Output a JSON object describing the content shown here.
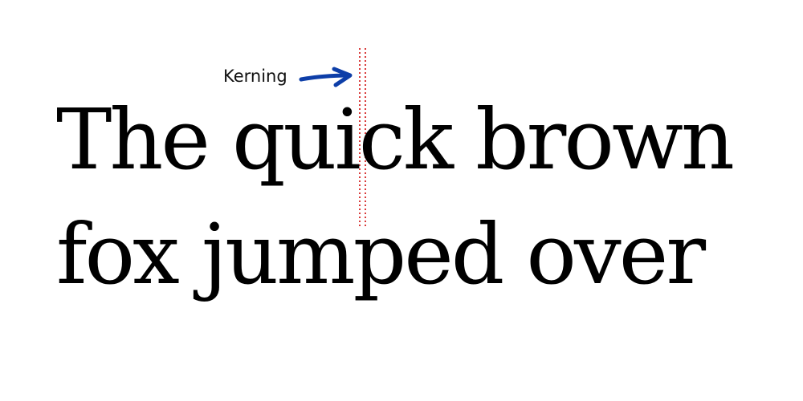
{
  "annotation": {
    "label": "Kerning",
    "arrow_icon": "right-arrow-icon",
    "arrow_color": "#0d3ea8",
    "guide_color": "#d93b3b"
  },
  "sample_text": {
    "line1": "The quick brown",
    "line2": "fox jumped over"
  }
}
